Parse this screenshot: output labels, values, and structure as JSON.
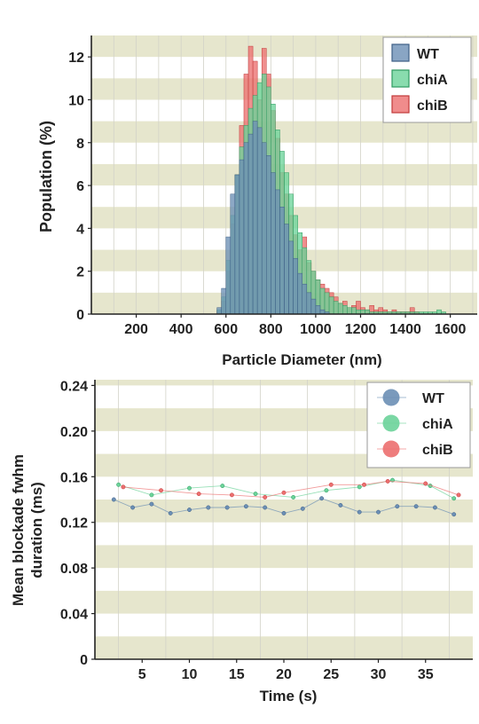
{
  "colors": {
    "band": "#e6e6cd",
    "grid": "#d2d2c8",
    "axis": "#222222",
    "WT": "#6b8fb5",
    "chiA": "#6cd39a",
    "chiB": "#ec6f6f",
    "WT_edge": "#3e5f86",
    "chiA_edge": "#2f9a60",
    "chiB_edge": "#c23a3a"
  },
  "chart_data": [
    {
      "type": "bar",
      "title": "",
      "xlabel": "Particle Diameter (nm)",
      "ylabel": "Population (%)",
      "xlim": [
        0,
        1720
      ],
      "ylim": [
        0,
        13
      ],
      "xticks": [
        "200",
        "400",
        "600",
        "800",
        "1000",
        "1200",
        "1400",
        "1600"
      ],
      "yticks": [
        "0",
        "2",
        "4",
        "6",
        "8",
        "10",
        "12"
      ],
      "bin_width": 20,
      "grid": true,
      "legend_position": "top-right",
      "series": [
        {
          "name": "chiB",
          "bins": [
            570,
            590,
            610,
            630,
            650,
            670,
            690,
            710,
            730,
            750,
            770,
            790,
            810,
            830,
            850,
            870,
            890,
            910,
            930,
            950,
            970,
            990,
            1010,
            1030,
            1050,
            1070,
            1090,
            1110,
            1130,
            1150,
            1170,
            1190,
            1210,
            1230,
            1250,
            1270,
            1290,
            1310,
            1330,
            1350,
            1370,
            1390,
            1410,
            1430,
            1450
          ],
          "values": [
            0.1,
            0.6,
            2.0,
            4.2,
            6.5,
            8.8,
            11.2,
            12.5,
            11.8,
            10.0,
            12.4,
            11.2,
            9.5,
            8.2,
            6.6,
            5.6,
            4.6,
            3.7,
            3.0,
            3.6,
            2.4,
            2.0,
            1.6,
            1.4,
            1.2,
            1.0,
            0.8,
            0.5,
            0.6,
            0.3,
            0.4,
            0.6,
            0.3,
            0.2,
            0.4,
            0.2,
            0.3,
            0.2,
            0.1,
            0.2,
            0.1,
            0.1,
            0.1,
            0.3,
            0.1
          ]
        },
        {
          "name": "chiA",
          "bins": [
            570,
            590,
            610,
            630,
            650,
            670,
            690,
            710,
            730,
            750,
            770,
            790,
            810,
            830,
            850,
            870,
            890,
            910,
            930,
            950,
            970,
            990,
            1010,
            1030,
            1050,
            1070,
            1090,
            1110,
            1130,
            1150,
            1170,
            1190,
            1210,
            1230,
            1250,
            1270,
            1290,
            1310,
            1330,
            1350,
            1370,
            1390,
            1410,
            1430,
            1450,
            1470,
            1490,
            1510,
            1530,
            1550,
            1570
          ],
          "values": [
            0.2,
            0.8,
            2.5,
            4.6,
            6.5,
            7.8,
            8.8,
            9.6,
            10.2,
            10.8,
            11.2,
            10.6,
            9.8,
            8.6,
            7.6,
            6.6,
            5.6,
            4.6,
            3.8,
            3.1,
            2.5,
            2.0,
            1.6,
            1.2,
            1.0,
            0.8,
            0.6,
            0.5,
            0.4,
            0.3,
            0.3,
            0.2,
            0.2,
            0.2,
            0.1,
            0.1,
            0.1,
            0.1,
            0.1,
            0.1,
            0.1,
            0.1,
            0.1,
            0.1,
            0.1,
            0.1,
            0.1,
            0.1,
            0.1,
            0.2,
            0.1
          ]
        },
        {
          "name": "WT",
          "bins": [
            570,
            590,
            610,
            630,
            650,
            670,
            690,
            710,
            730,
            750,
            770,
            790,
            810,
            830,
            850,
            870,
            890,
            910,
            930,
            950,
            970,
            990,
            1010,
            1030,
            1050
          ],
          "values": [
            0.3,
            1.2,
            3.6,
            5.6,
            6.5,
            7.2,
            8.0,
            8.4,
            9.0,
            8.7,
            8.0,
            7.4,
            6.6,
            5.8,
            5.0,
            4.2,
            3.4,
            2.6,
            1.9,
            1.4,
            1.0,
            0.7,
            0.4,
            0.2,
            0.1
          ]
        }
      ]
    },
    {
      "type": "line",
      "title": "",
      "xlabel": "Time (s)",
      "ylabel_lines": [
        "Mean blockade fwhm",
        "duration (ms)"
      ],
      "xlim": [
        0,
        40
      ],
      "ylim": [
        0,
        0.245
      ],
      "xticks": [
        "5",
        "10",
        "15",
        "20",
        "25",
        "30",
        "35"
      ],
      "yticks": [
        "0",
        "0.04",
        "0.08",
        "0.12",
        "0.16",
        "0.20",
        "0.24"
      ],
      "grid": true,
      "legend_position": "top-right",
      "series": [
        {
          "name": "WT",
          "x": [
            2,
            4,
            6,
            8,
            10,
            12,
            14,
            16,
            18,
            20,
            22,
            24,
            26,
            28,
            30,
            32,
            34,
            36,
            38
          ],
          "y": [
            0.14,
            0.133,
            0.136,
            0.128,
            0.131,
            0.133,
            0.133,
            0.134,
            0.133,
            0.128,
            0.132,
            0.141,
            0.135,
            0.129,
            0.129,
            0.134,
            0.134,
            0.133,
            0.127
          ]
        },
        {
          "name": "chiA",
          "x": [
            2.5,
            6,
            10,
            13.5,
            17,
            21,
            24.5,
            28,
            31.5,
            35.5,
            38
          ],
          "y": [
            0.153,
            0.144,
            0.15,
            0.152,
            0.145,
            0.142,
            0.148,
            0.151,
            0.157,
            0.152,
            0.141
          ]
        },
        {
          "name": "chiB",
          "x": [
            3,
            7,
            11,
            14.5,
            18,
            20,
            25,
            28.5,
            31,
            35,
            38.5
          ],
          "y": [
            0.151,
            0.148,
            0.145,
            0.144,
            0.142,
            0.146,
            0.153,
            0.153,
            0.156,
            0.154,
            0.144
          ]
        }
      ]
    }
  ]
}
